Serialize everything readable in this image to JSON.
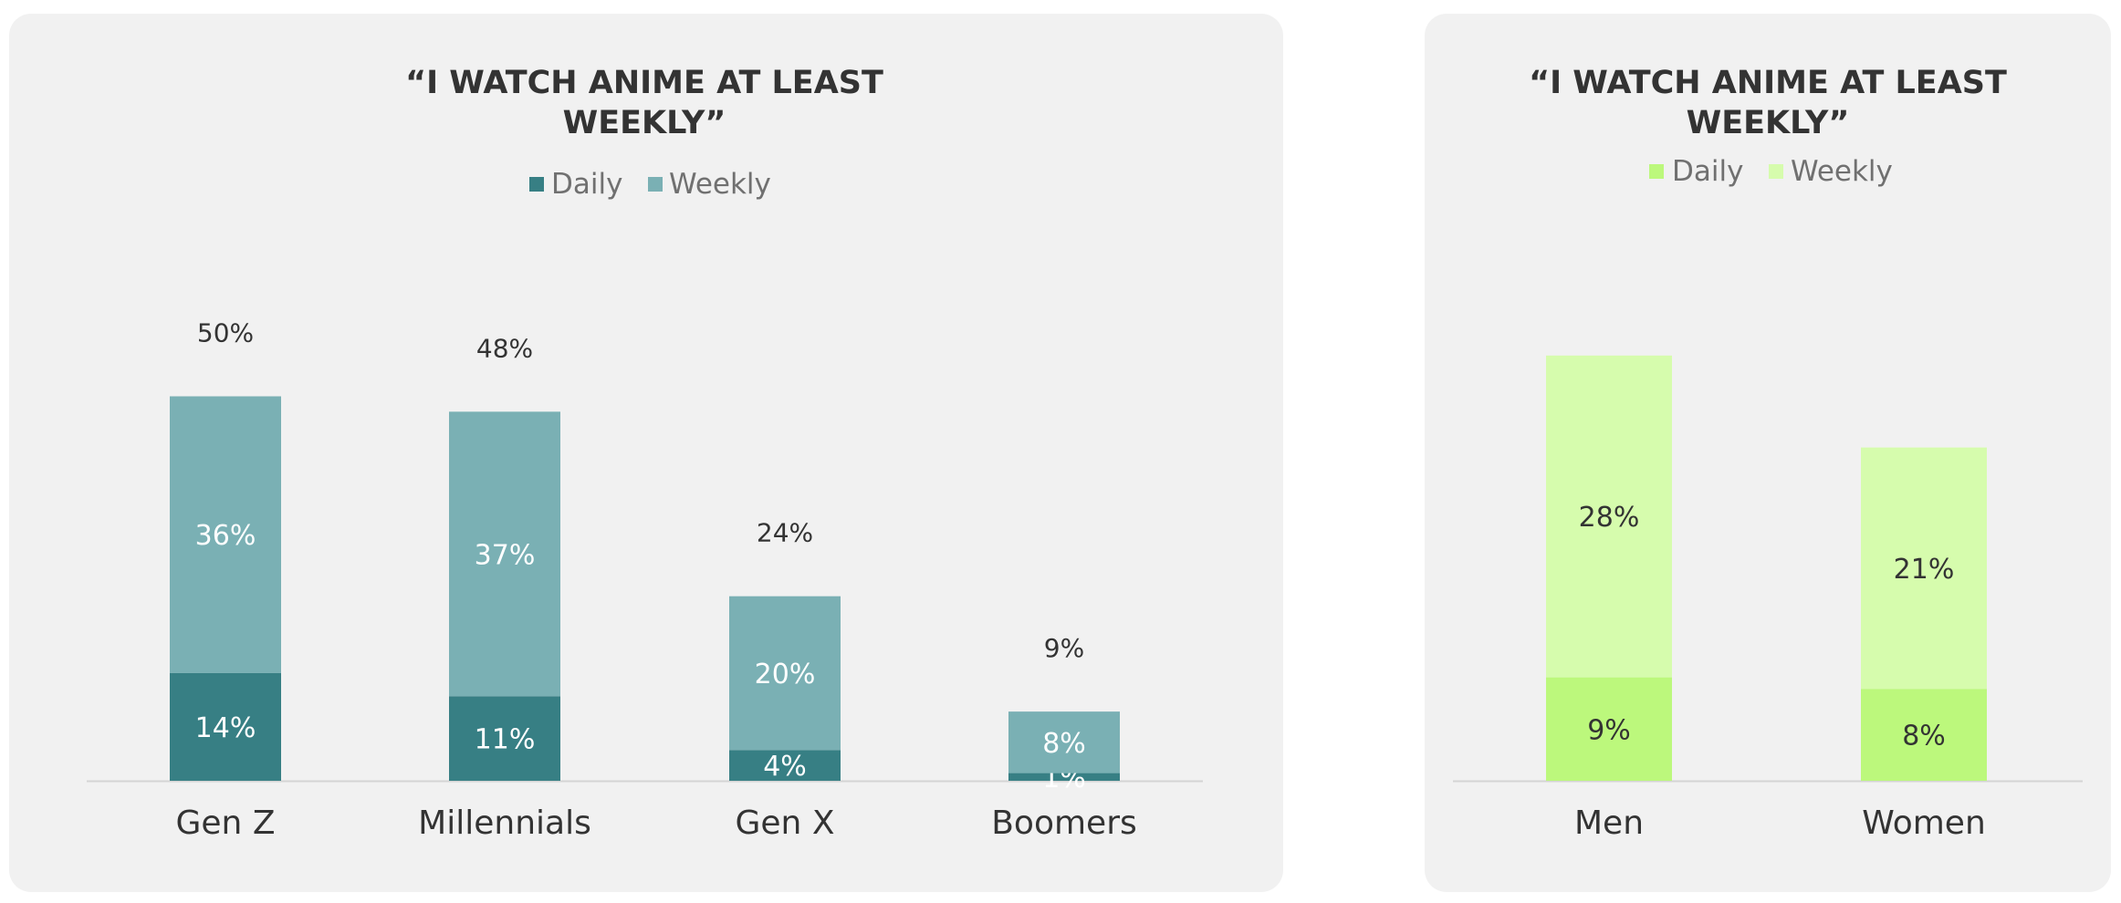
{
  "chart_data": [
    {
      "type": "bar",
      "stacked": true,
      "title": "“I WATCH ANIME AT LEAST WEEKLY”",
      "title_lines": [
        "“I WATCH ANIME AT LEAST",
        "WEEKLY”"
      ],
      "categories": [
        "Gen Z",
        "Millennials",
        "Gen X",
        "Boomers"
      ],
      "series": [
        {
          "name": "Daily",
          "color": "#377f84",
          "label_color": "#ffffff",
          "values": [
            14,
            11,
            4,
            1
          ],
          "labels": [
            "14%",
            "11%",
            "4%",
            "1%"
          ]
        },
        {
          "name": "Weekly",
          "color": "#7ab0b4",
          "label_color": "#ffffff",
          "values": [
            36,
            37,
            20,
            8
          ],
          "labels": [
            "36%",
            "37%",
            "20%",
            "8%"
          ]
        }
      ],
      "totals": [
        "50%",
        "48%",
        "24%",
        "9%"
      ],
      "total_values": [
        50,
        48,
        24,
        9
      ],
      "legend_position": "top",
      "ylim": [
        0,
        55
      ],
      "grid": false
    },
    {
      "type": "bar",
      "stacked": true,
      "title": "“I WATCH ANIME AT LEAST WEEKLY”",
      "title_lines": [
        "“I WATCH ANIME AT LEAST",
        "WEEKLY”"
      ],
      "categories": [
        "Men",
        "Women"
      ],
      "series": [
        {
          "name": "Daily",
          "color": "#bcf87c",
          "label_color": "#333333",
          "values": [
            9,
            8
          ],
          "labels": [
            "9%",
            "8%"
          ]
        },
        {
          "name": "Weekly",
          "color": "#d6fcad",
          "label_color": "#333333",
          "values": [
            28,
            21
          ],
          "labels": [
            "28%",
            "21%"
          ]
        }
      ],
      "legend_position": "top",
      "ylim": [
        0,
        45
      ],
      "grid": false
    }
  ]
}
